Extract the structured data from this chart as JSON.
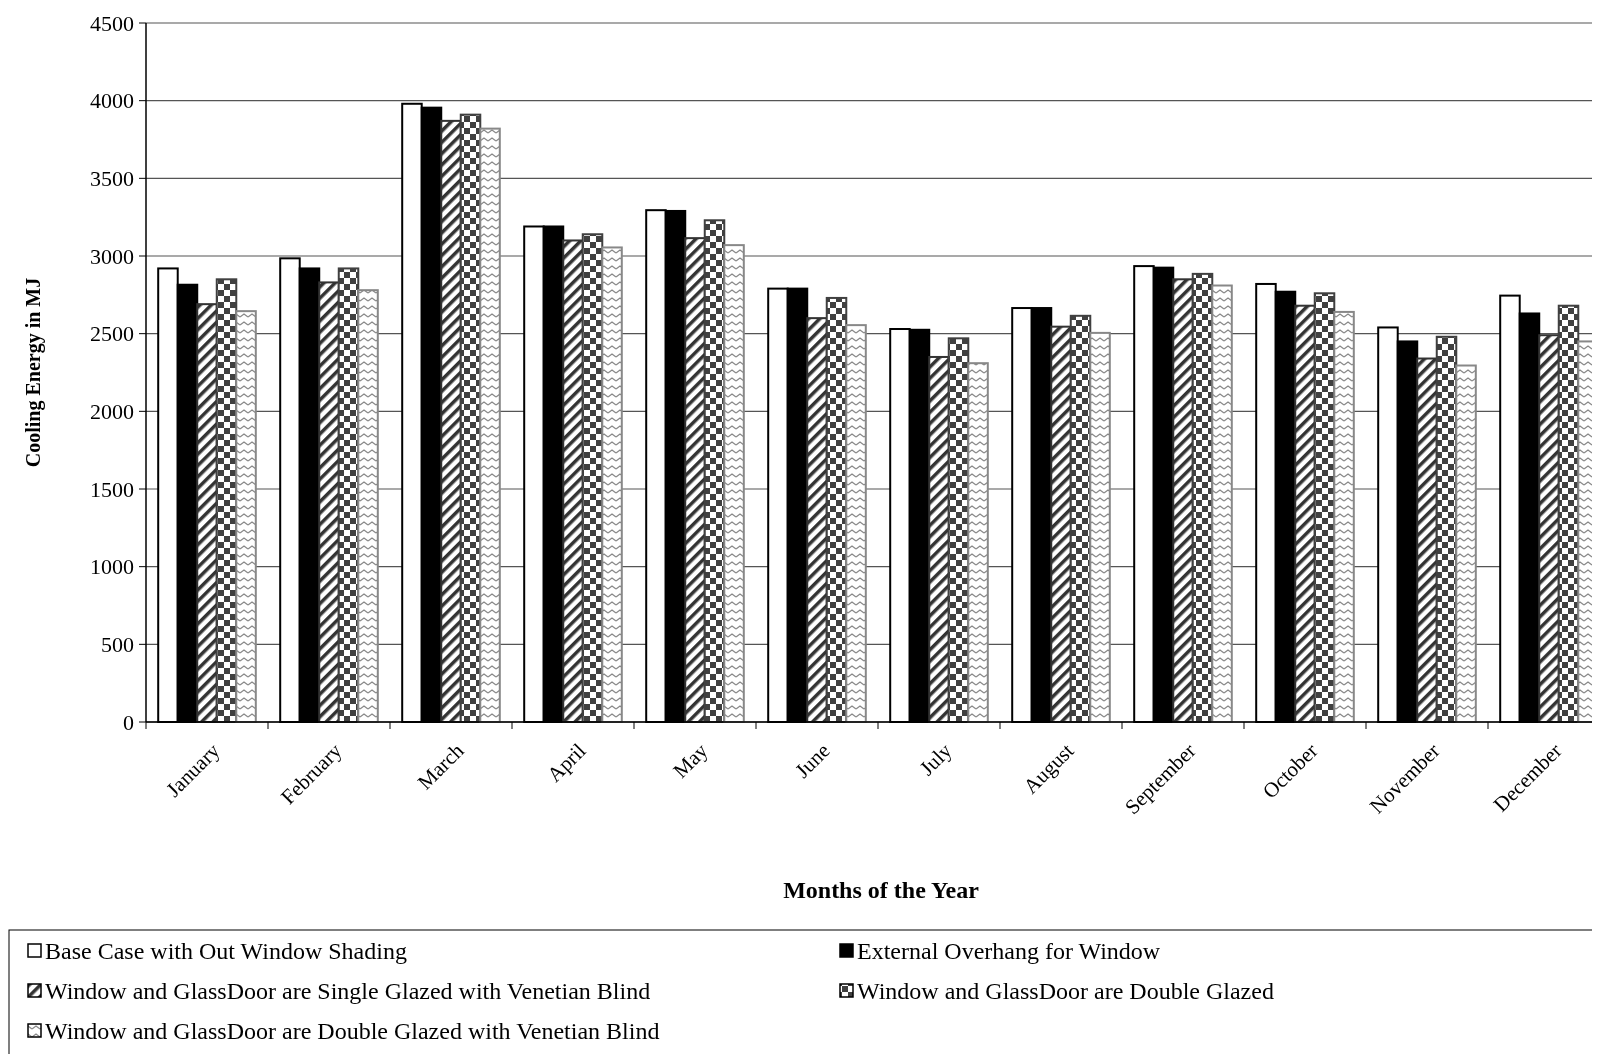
{
  "chart_data": {
    "type": "bar",
    "xlabel": "Months of the Year",
    "ylabel": "Cooling Energy in MJ",
    "categories": [
      "January",
      "February",
      "March",
      "April",
      "May",
      "June",
      "July",
      "August",
      "September",
      "October",
      "November",
      "December"
    ],
    "series": [
      {
        "name": "Base Case with Out Window Shading",
        "color": "#ffffff",
        "values": [
          2920,
          2985,
          3980,
          3190,
          3295,
          2790,
          2530,
          2665,
          2935,
          2820,
          2540,
          2745
        ]
      },
      {
        "name": "External Overhang for Window",
        "color": "#000000",
        "values": [
          2815,
          2920,
          3955,
          3190,
          3290,
          2790,
          2525,
          2665,
          2925,
          2770,
          2450,
          2630
        ]
      },
      {
        "name": "Window and GlassDoor are Single Glazed with Venetian Blind",
        "color": "#333333",
        "values": [
          2690,
          2830,
          3870,
          3100,
          3115,
          2600,
          2350,
          2545,
          2850,
          2680,
          2340,
          2490
        ]
      },
      {
        "name": "Window and GlassDoor are Double Glazed",
        "color": "#404040",
        "values": [
          2850,
          2920,
          3910,
          3140,
          3230,
          2730,
          2470,
          2615,
          2885,
          2760,
          2480,
          2680
        ]
      },
      {
        "name": "Window and GlassDoor are Double Glazed with Venetian Blind",
        "color": "#888888",
        "values": [
          2645,
          2780,
          3820,
          3055,
          3070,
          2555,
          2310,
          2505,
          2810,
          2640,
          2295,
          2450
        ]
      }
    ],
    "ylim": [
      0,
      4500
    ],
    "yticks": [
      0,
      500,
      1000,
      1500,
      2000,
      2500,
      3000,
      3500,
      4000,
      4500
    ],
    "grid": "y",
    "legend": "bottom"
  }
}
